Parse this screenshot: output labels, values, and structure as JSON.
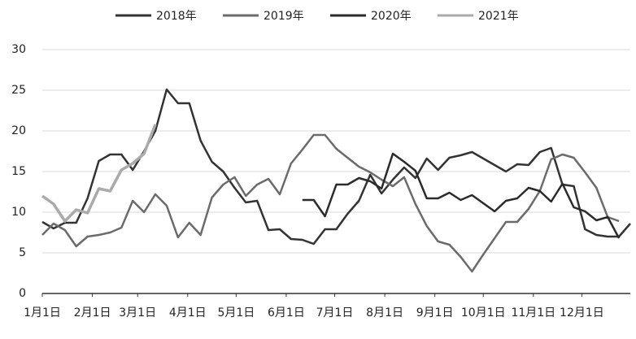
{
  "chart_data": {
    "type": "line",
    "x": [
      0,
      7,
      14,
      21,
      28,
      35,
      42,
      49,
      56,
      63,
      70,
      77,
      84,
      91,
      98,
      105,
      112,
      119,
      126,
      133,
      140,
      147,
      154,
      161,
      168,
      175,
      182,
      189,
      196,
      203,
      210,
      217,
      224,
      231,
      238,
      245,
      252,
      259,
      266,
      273,
      280,
      287,
      294,
      301,
      308,
      315,
      322,
      329,
      336,
      343,
      350,
      357,
      364
    ],
    "xlim": [
      0,
      364
    ],
    "xticks": [
      {
        "value": 0,
        "label": "1月1日"
      },
      {
        "value": 31,
        "label": "2月1日"
      },
      {
        "value": 59,
        "label": "3月1日"
      },
      {
        "value": 90,
        "label": "4月1日"
      },
      {
        "value": 120,
        "label": "5月1日"
      },
      {
        "value": 151,
        "label": "6月1日"
      },
      {
        "value": 181,
        "label": "7月1日"
      },
      {
        "value": 212,
        "label": "8月1日"
      },
      {
        "value": 243,
        "label": "9月1日"
      },
      {
        "value": 273,
        "label": "10月1日"
      },
      {
        "value": 304,
        "label": "11月1日"
      },
      {
        "value": 334,
        "label": "12月1日"
      }
    ],
    "ylim": [
      0,
      30
    ],
    "yticks": [
      0,
      5,
      10,
      15,
      20,
      25,
      30
    ],
    "grid": true,
    "series": [
      {
        "name": "2018年",
        "color": "#333333",
        "values": [
          8.8,
          8.0,
          8.7,
          8.7,
          11.7,
          16.3,
          17.1,
          17.1,
          15.2,
          17.5,
          20.0,
          25.1,
          23.4,
          23.4,
          18.8,
          16.2,
          15.0,
          13.0,
          11.2,
          11.4,
          7.8,
          7.9,
          6.7,
          6.6,
          6.1,
          7.9,
          7.9,
          9.8,
          11.4,
          14.6,
          12.3,
          14.0,
          15.5,
          14.2,
          16.6,
          15.2,
          16.7,
          17.0,
          17.4,
          16.6,
          15.8,
          15.0,
          15.9,
          15.8,
          17.4,
          17.9,
          13.4,
          13.2,
          7.9,
          7.2,
          7.0,
          7.0,
          8.6
        ]
      },
      {
        "name": "2019年",
        "color": "#6b6b6b",
        "values": [
          7.2,
          8.6,
          7.8,
          5.8,
          7.0,
          7.2,
          7.5,
          8.1,
          11.4,
          10.0,
          12.2,
          10.8,
          6.9,
          8.7,
          7.2,
          11.8,
          13.4,
          14.3,
          12.0,
          13.4,
          14.1,
          12.2,
          16.0,
          17.7,
          19.5,
          19.5,
          17.8,
          16.7,
          15.6,
          14.9,
          14.0,
          13.2,
          14.3,
          11.0,
          8.3,
          6.4,
          6.0,
          4.5,
          2.7,
          4.8,
          6.8,
          8.8,
          8.8,
          10.4,
          12.6,
          16.5,
          17.1,
          16.7,
          14.9,
          13.0,
          9.4,
          8.9,
          null
        ]
      },
      {
        "name": "2020年",
        "color": "#2b2b2b",
        "values": [
          null,
          null,
          null,
          null,
          null,
          null,
          null,
          null,
          null,
          null,
          null,
          null,
          null,
          null,
          null,
          null,
          null,
          null,
          null,
          null,
          null,
          null,
          null,
          11.5,
          11.5,
          9.5,
          13.4,
          13.4,
          14.2,
          13.8,
          12.9,
          17.2,
          16.2,
          15.1,
          11.7,
          11.7,
          12.4,
          11.5,
          12.1,
          11.1,
          10.1,
          11.4,
          11.7,
          13.0,
          12.6,
          11.3,
          13.5,
          10.6,
          10.1,
          9.0,
          9.4,
          6.8,
          null
        ]
      },
      {
        "name": "2021年",
        "color": "#aaaaaa",
        "values": [
          12.0,
          11.0,
          8.9,
          10.3,
          9.9,
          12.9,
          12.6,
          15.2,
          16.0,
          17.2,
          20.8,
          null,
          null,
          null,
          null,
          null,
          null,
          null,
          null,
          null,
          null,
          null,
          null,
          null,
          null,
          null,
          null,
          null,
          null,
          null,
          null,
          null,
          null,
          null,
          null,
          null,
          null,
          null,
          null,
          null,
          null,
          null,
          null,
          null,
          null,
          null,
          null,
          null,
          null,
          null,
          null,
          null,
          null
        ]
      }
    ]
  }
}
